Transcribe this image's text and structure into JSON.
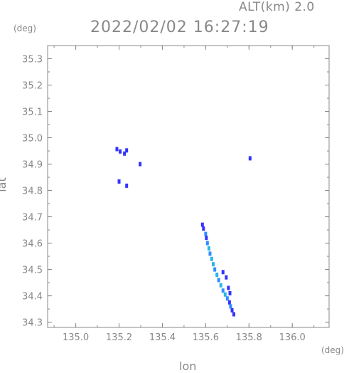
{
  "header": {
    "altitude": "ALT(km) 2.0",
    "datetime": "2022/02/02 16:27:19"
  },
  "chart_data": {
    "type": "scatter",
    "title": "2022/02/02 16:27:19",
    "subtitle": "ALT(km) 2.0",
    "xlabel": "lon",
    "ylabel": "lat",
    "x_unit": "(deg)",
    "y_unit": "(deg)",
    "xlim": [
      134.87,
      136.17
    ],
    "ylim": [
      34.28,
      35.35
    ],
    "x_ticks": [
      "135.0",
      "135.2",
      "135.4",
      "135.6",
      "135.8",
      "136.0"
    ],
    "y_ticks": [
      "34.3",
      "34.4",
      "34.5",
      "34.6",
      "34.7",
      "34.8",
      "34.9",
      "35.0",
      "35.1",
      "35.2",
      "35.3"
    ],
    "grid": false,
    "colors": {
      "axis": "#888888",
      "echo_low": "#3333ff",
      "echo_mid": "#2f8cff",
      "echo_high": "#2ab6e8"
    },
    "series": [
      {
        "points": [
          {
            "x": 135.19,
            "y": 34.957,
            "c": "echo_low"
          },
          {
            "x": 135.205,
            "y": 34.948,
            "c": "echo_low"
          },
          {
            "x": 135.225,
            "y": 34.94,
            "c": "echo_low"
          },
          {
            "x": 135.235,
            "y": 34.952,
            "c": "echo_low"
          },
          {
            "x": 135.297,
            "y": 34.9,
            "c": "echo_low"
          },
          {
            "x": 135.805,
            "y": 34.922,
            "c": "echo_low"
          },
          {
            "x": 135.2,
            "y": 34.834,
            "c": "echo_low"
          },
          {
            "x": 135.235,
            "y": 34.818,
            "c": "echo_low"
          },
          {
            "x": 135.585,
            "y": 34.67,
            "c": "echo_low"
          },
          {
            "x": 135.59,
            "y": 34.655,
            "c": "echo_low"
          },
          {
            "x": 135.6,
            "y": 34.635,
            "c": "echo_mid"
          },
          {
            "x": 135.603,
            "y": 34.62,
            "c": "echo_low"
          },
          {
            "x": 135.608,
            "y": 34.6,
            "c": "echo_mid"
          },
          {
            "x": 135.615,
            "y": 34.58,
            "c": "echo_high"
          },
          {
            "x": 135.62,
            "y": 34.56,
            "c": "echo_mid"
          },
          {
            "x": 135.628,
            "y": 34.54,
            "c": "echo_high"
          },
          {
            "x": 135.635,
            "y": 34.52,
            "c": "echo_high"
          },
          {
            "x": 135.642,
            "y": 34.5,
            "c": "echo_mid"
          },
          {
            "x": 135.652,
            "y": 34.48,
            "c": "echo_high"
          },
          {
            "x": 135.66,
            "y": 34.46,
            "c": "echo_mid"
          },
          {
            "x": 135.67,
            "y": 34.44,
            "c": "echo_high"
          },
          {
            "x": 135.68,
            "y": 34.42,
            "c": "echo_mid"
          },
          {
            "x": 135.69,
            "y": 34.405,
            "c": "echo_high"
          },
          {
            "x": 135.7,
            "y": 34.39,
            "c": "echo_mid"
          },
          {
            "x": 135.71,
            "y": 34.375,
            "c": "echo_low"
          },
          {
            "x": 135.715,
            "y": 34.36,
            "c": "echo_mid"
          },
          {
            "x": 135.722,
            "y": 34.345,
            "c": "echo_low"
          },
          {
            "x": 135.73,
            "y": 34.33,
            "c": "echo_low"
          },
          {
            "x": 135.68,
            "y": 34.49,
            "c": "echo_low"
          },
          {
            "x": 135.705,
            "y": 34.43,
            "c": "echo_low"
          },
          {
            "x": 135.712,
            "y": 34.41,
            "c": "echo_low"
          },
          {
            "x": 135.695,
            "y": 34.47,
            "c": "echo_low"
          }
        ]
      }
    ]
  }
}
